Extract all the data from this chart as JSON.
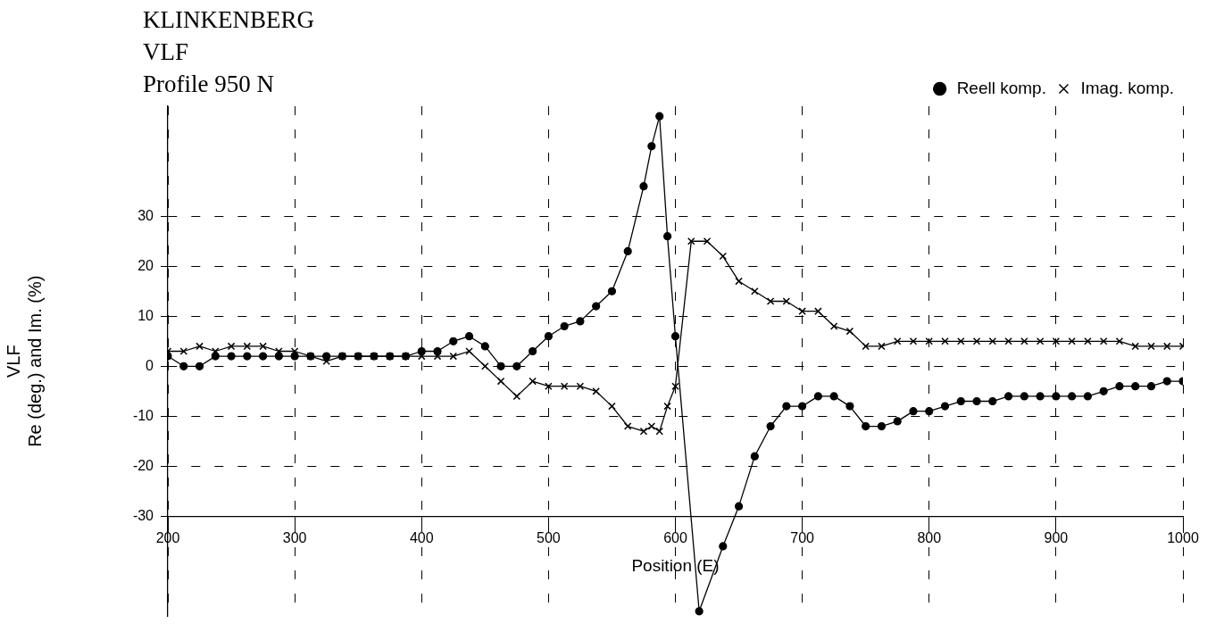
{
  "chart_data": {
    "type": "line",
    "title": "KLINKENBERG\nVLF\nProfile 950 N",
    "xlabel": "Position (E)",
    "ylabel": "VLF\nRe (deg.) and Im. (%)",
    "xlim": [
      200,
      1000
    ],
    "xticks": [
      200,
      300,
      400,
      500,
      600,
      700,
      800,
      900,
      1000
    ],
    "ylim": [
      -50,
      52
    ],
    "yticks": [
      -30,
      -20,
      -10,
      0,
      10,
      20,
      30
    ],
    "grid": true,
    "legend": "top right",
    "line_style": "solid",
    "series": [
      {
        "name": "Reell komp.",
        "color": "#000000",
        "marker": "circle",
        "x": [
          200,
          212.5,
          225,
          237.5,
          250,
          262.5,
          275,
          287.5,
          300,
          312.5,
          325,
          337.5,
          350,
          362.5,
          375,
          387.5,
          400,
          412.5,
          425,
          437.5,
          450,
          462.5,
          475,
          487.5,
          500,
          512.5,
          525,
          537.5,
          550,
          562.5,
          575,
          581.25,
          587.5,
          593.75,
          600,
          618.75,
          637.5,
          650,
          662.5,
          675,
          687.5,
          700,
          712.5,
          725,
          737.5,
          750,
          762.5,
          775,
          787.5,
          800,
          812.5,
          825,
          837.5,
          850,
          862.5,
          875,
          887.5,
          900,
          912.5,
          925,
          937.5,
          950,
          962.5,
          975,
          987.5,
          1000
        ],
        "values": [
          2,
          0,
          0,
          2,
          2,
          2,
          2,
          2,
          2,
          2,
          2,
          2,
          2,
          2,
          2,
          2,
          3,
          3,
          5,
          6,
          4,
          0,
          0,
          3,
          6,
          8,
          9,
          12,
          15,
          23,
          36,
          44,
          50,
          26,
          6,
          -49,
          -36,
          -28,
          -18,
          -12,
          -8,
          -8,
          -6,
          -6,
          -8,
          -12,
          -12,
          -11,
          -9,
          -9,
          -8,
          -7,
          -7,
          -7,
          -6,
          -6,
          -6,
          -6,
          -6,
          -6,
          -5,
          -4,
          -4,
          -4,
          -3,
          -3
        ]
      },
      {
        "name": "Imag. komp.",
        "color": "#000000",
        "marker": "cross",
        "x": [
          200,
          212.5,
          225,
          237.5,
          250,
          262.5,
          275,
          287.5,
          300,
          312.5,
          325,
          337.5,
          350,
          362.5,
          375,
          387.5,
          400,
          412.5,
          425,
          437.5,
          450,
          462.5,
          475,
          487.5,
          500,
          512.5,
          525,
          537.5,
          550,
          562.5,
          575,
          581.25,
          587.5,
          593.75,
          600,
          612.5,
          625,
          637.5,
          650,
          662.5,
          675,
          687.5,
          700,
          712.5,
          725,
          737.5,
          750,
          762.5,
          775,
          787.5,
          800,
          812.5,
          825,
          837.5,
          850,
          862.5,
          875,
          887.5,
          900,
          912.5,
          925,
          937.5,
          950,
          962.5,
          975,
          987.5,
          1000
        ],
        "values": [
          3,
          3,
          4,
          3,
          4,
          4,
          4,
          3,
          3,
          2,
          1,
          2,
          2,
          2,
          2,
          2,
          2,
          2,
          2,
          3,
          0,
          -3,
          -6,
          -3,
          -4,
          -4,
          -4,
          -5,
          -8,
          -12,
          -13,
          -12,
          -13,
          -8,
          -4,
          25,
          25,
          22,
          17,
          15,
          13,
          13,
          11,
          11,
          8,
          7,
          4,
          4,
          5,
          5,
          5,
          5,
          5,
          5,
          5,
          5,
          5,
          5,
          5,
          5,
          5,
          5,
          5,
          4,
          4,
          4,
          4
        ]
      }
    ]
  }
}
